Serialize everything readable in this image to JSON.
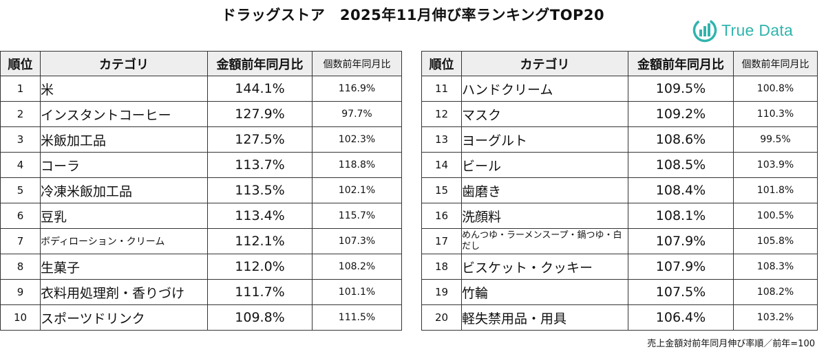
{
  "title": "ドラッグストア　2025年11月伸び率ランキングTOP20",
  "logo": {
    "text": "True Data",
    "icon": "bar-chart-circle-icon",
    "color": "#30b4ad"
  },
  "headers": {
    "rank": "順位",
    "category": "カテゴリ",
    "amount": "金額前年同月比",
    "quantity": "個数前年同月比"
  },
  "left_rows": [
    {
      "rank": "1",
      "category": "米",
      "amount": "144.1%",
      "quantity": "116.9%"
    },
    {
      "rank": "2",
      "category": "インスタントコーヒー",
      "amount": "127.9%",
      "quantity": "97.7%"
    },
    {
      "rank": "3",
      "category": "米飯加工品",
      "amount": "127.5%",
      "quantity": "102.3%"
    },
    {
      "rank": "4",
      "category": "コーラ",
      "amount": "113.7%",
      "quantity": "118.8%"
    },
    {
      "rank": "5",
      "category": "冷凍米飯加工品",
      "amount": "113.5%",
      "quantity": "102.1%"
    },
    {
      "rank": "6",
      "category": "豆乳",
      "amount": "113.4%",
      "quantity": "115.7%"
    },
    {
      "rank": "7",
      "category": "ボディローション・クリーム",
      "amount": "112.1%",
      "quantity": "107.3%"
    },
    {
      "rank": "8",
      "category": "生菓子",
      "amount": "112.0%",
      "quantity": "108.2%"
    },
    {
      "rank": "9",
      "category": "衣料用処理剤・香りづけ",
      "amount": "111.7%",
      "quantity": "101.1%"
    },
    {
      "rank": "10",
      "category": "スポーツドリンク",
      "amount": "109.8%",
      "quantity": "111.5%"
    }
  ],
  "right_rows": [
    {
      "rank": "11",
      "category": "ハンドクリーム",
      "amount": "109.5%",
      "quantity": "100.8%"
    },
    {
      "rank": "12",
      "category": "マスク",
      "amount": "109.2%",
      "quantity": "110.3%"
    },
    {
      "rank": "13",
      "category": "ヨーグルト",
      "amount": "108.6%",
      "quantity": "99.5%"
    },
    {
      "rank": "14",
      "category": "ビール",
      "amount": "108.5%",
      "quantity": "103.9%"
    },
    {
      "rank": "15",
      "category": "歯磨き",
      "amount": "108.4%",
      "quantity": "101.8%"
    },
    {
      "rank": "16",
      "category": "洗顔料",
      "amount": "108.1%",
      "quantity": "100.5%"
    },
    {
      "rank": "17",
      "category": "めんつゆ・ラーメンスープ・鍋つゆ・白だし",
      "amount": "107.9%",
      "quantity": "105.8%"
    },
    {
      "rank": "18",
      "category": "ビスケット・クッキー",
      "amount": "107.9%",
      "quantity": "108.3%"
    },
    {
      "rank": "19",
      "category": "竹輪",
      "amount": "107.5%",
      "quantity": "108.2%"
    },
    {
      "rank": "20",
      "category": "軽失禁用品・用具",
      "amount": "106.4%",
      "quantity": "103.2%"
    }
  ],
  "footnote": "売上金額対前年同月伸び率順／前年=100"
}
